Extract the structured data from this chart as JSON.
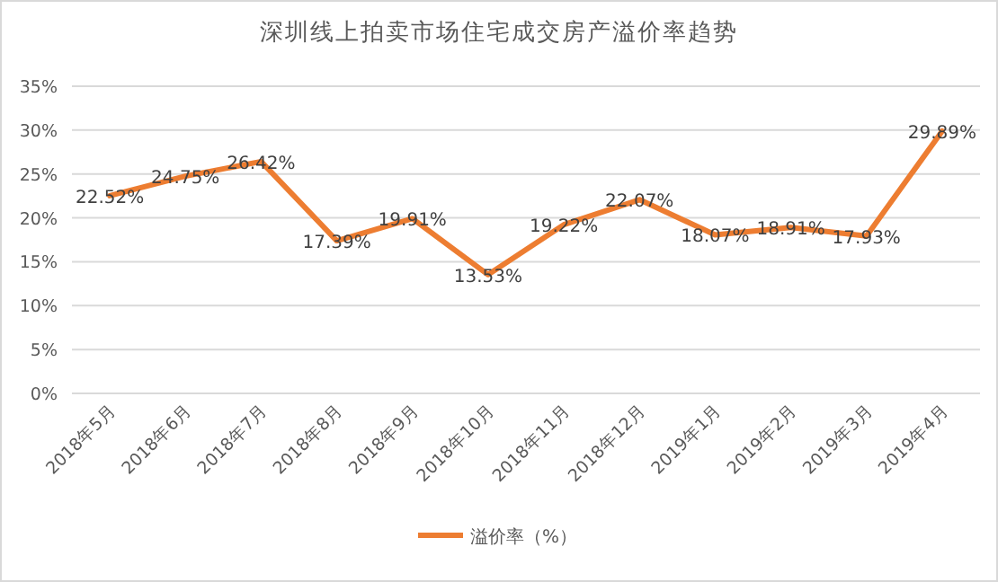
{
  "chart_data": {
    "type": "line",
    "title": "深圳线上拍卖市场住宅成交房产溢价率趋势",
    "categories": [
      "2018年5月",
      "2018年6月",
      "2018年7月",
      "2018年8月",
      "2018年9月",
      "2018年10月",
      "2018年11月",
      "2018年12月",
      "2019年1月",
      "2019年2月",
      "2019年3月",
      "2019年4月"
    ],
    "series": [
      {
        "name": "溢价率（%）",
        "color": "#ed7d31",
        "values": [
          22.52,
          24.75,
          26.42,
          17.39,
          19.91,
          13.53,
          19.22,
          22.07,
          18.07,
          18.91,
          17.93,
          29.89
        ],
        "value_labels": [
          "22.52%",
          "24.75%",
          "26.42%",
          "17.39%",
          "19.91%",
          "13.53%",
          "19.22%",
          "22.07%",
          "18.07%",
          "18.91%",
          "17.93%",
          "29.89%"
        ]
      }
    ],
    "ylim": [
      0,
      35
    ],
    "yticks": [
      {
        "value": 0,
        "label": "0%"
      },
      {
        "value": 5,
        "label": "5%"
      },
      {
        "value": 10,
        "label": "10%"
      },
      {
        "value": 15,
        "label": "15%"
      },
      {
        "value": 20,
        "label": "20%"
      },
      {
        "value": 25,
        "label": "25%"
      },
      {
        "value": 30,
        "label": "30%"
      },
      {
        "value": 35,
        "label": "35%"
      }
    ],
    "grid": "y",
    "legend": "bottom",
    "marker": "none",
    "line_style": "solid"
  }
}
